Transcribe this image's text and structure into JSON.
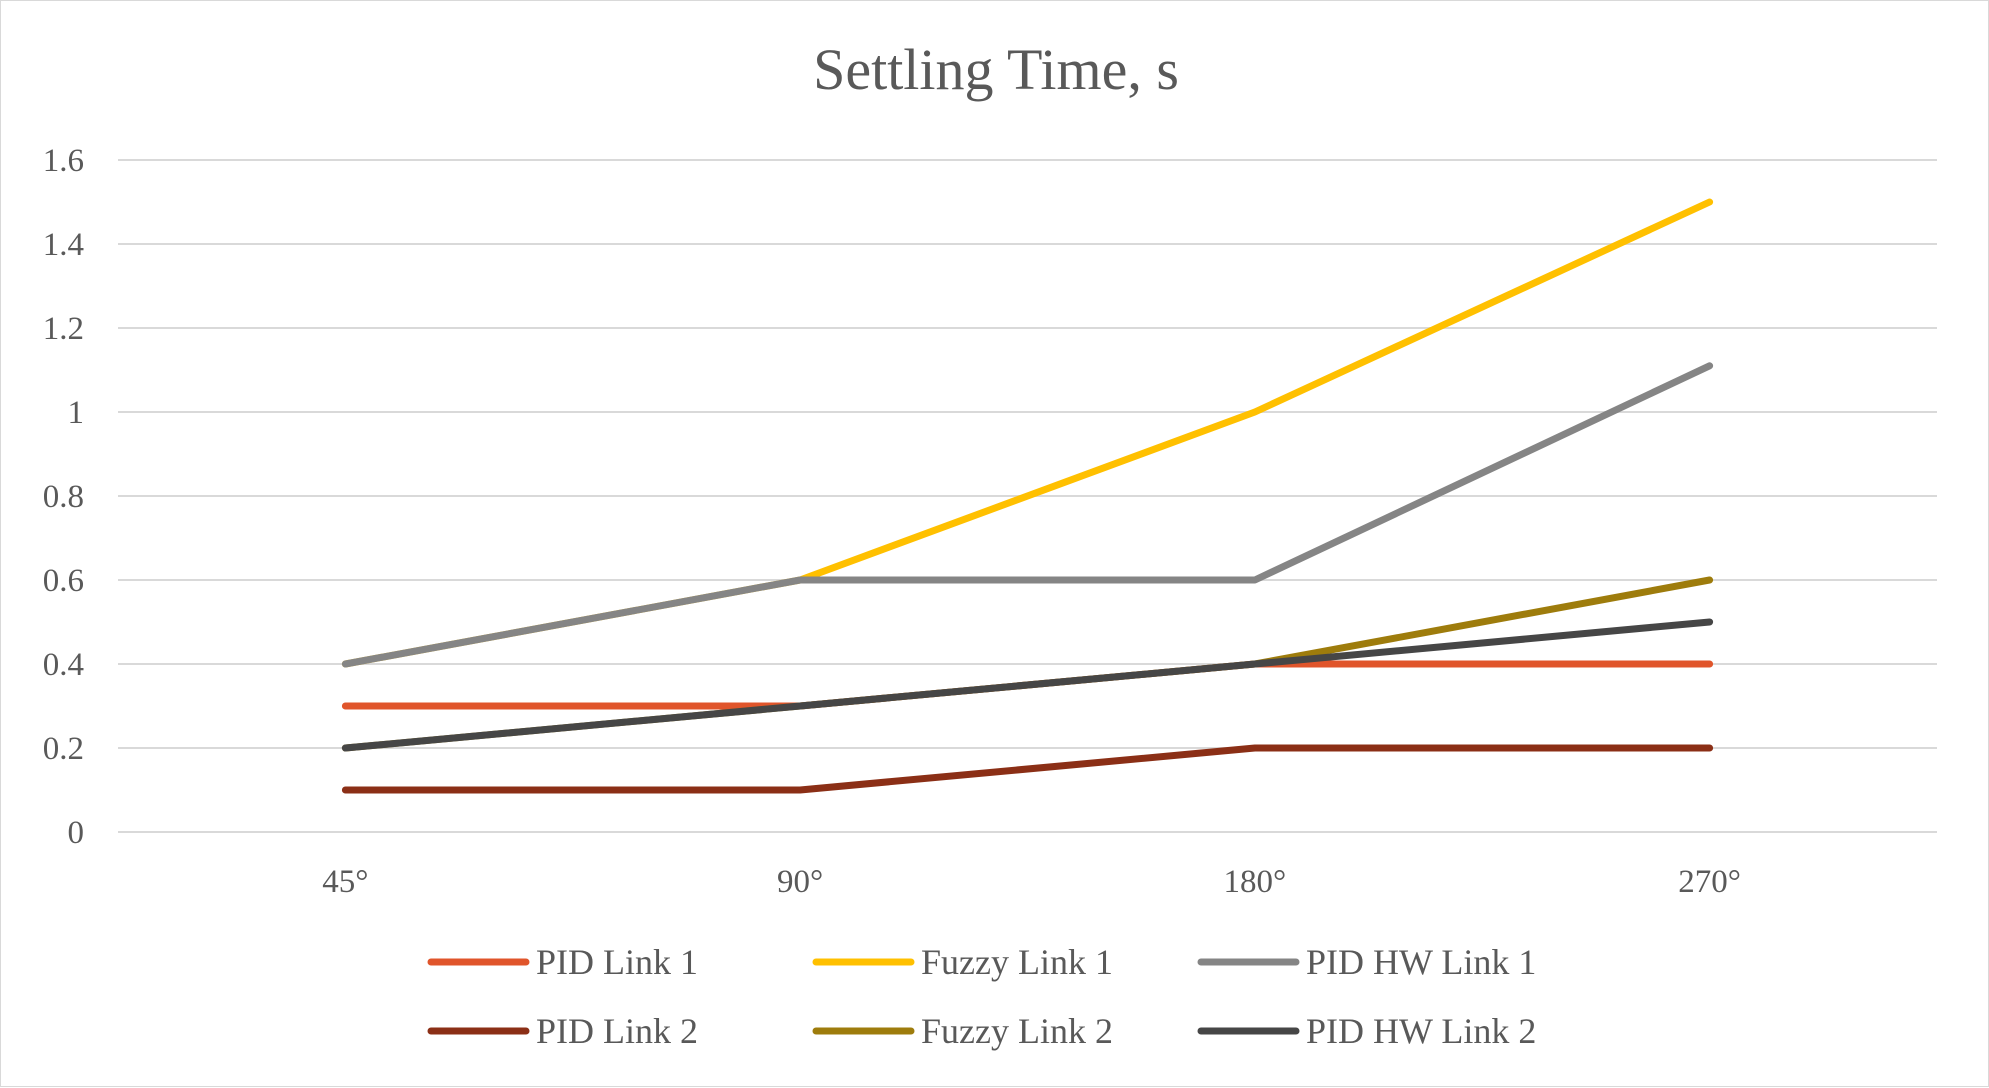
{
  "chart_data": {
    "type": "line",
    "title": "Settling Time, s",
    "xlabel": "",
    "ylabel": "",
    "categories": [
      "45°",
      "90°",
      "180°",
      "270°"
    ],
    "ylim": [
      0,
      1.6
    ],
    "y_ticks": [
      "0",
      "0.2",
      "0.4",
      "0.6",
      "0.8",
      "1",
      "1.2",
      "1.4",
      "1.6"
    ],
    "grid": true,
    "legend_position": "bottom",
    "series": [
      {
        "name": "PID Link 1",
        "color": "#E0552B",
        "values": [
          0.3,
          0.3,
          0.4,
          0.4
        ]
      },
      {
        "name": "Fuzzy Link 1",
        "color": "#FFC000",
        "values": [
          0.4,
          0.6,
          1.0,
          1.5
        ]
      },
      {
        "name": "PID HW Link 1",
        "color": "#858585",
        "values": [
          0.4,
          0.6,
          0.6,
          1.11
        ]
      },
      {
        "name": "PID Link 2",
        "color": "#8B2F16",
        "values": [
          0.1,
          0.1,
          0.2,
          0.2
        ]
      },
      {
        "name": "Fuzzy Link 2",
        "color": "#9E7C0C",
        "values": [
          0.2,
          0.3,
          0.4,
          0.6
        ]
      },
      {
        "name": "PID HW Link 2",
        "color": "#464646",
        "values": [
          0.2,
          0.3,
          0.4,
          0.5
        ]
      }
    ]
  }
}
